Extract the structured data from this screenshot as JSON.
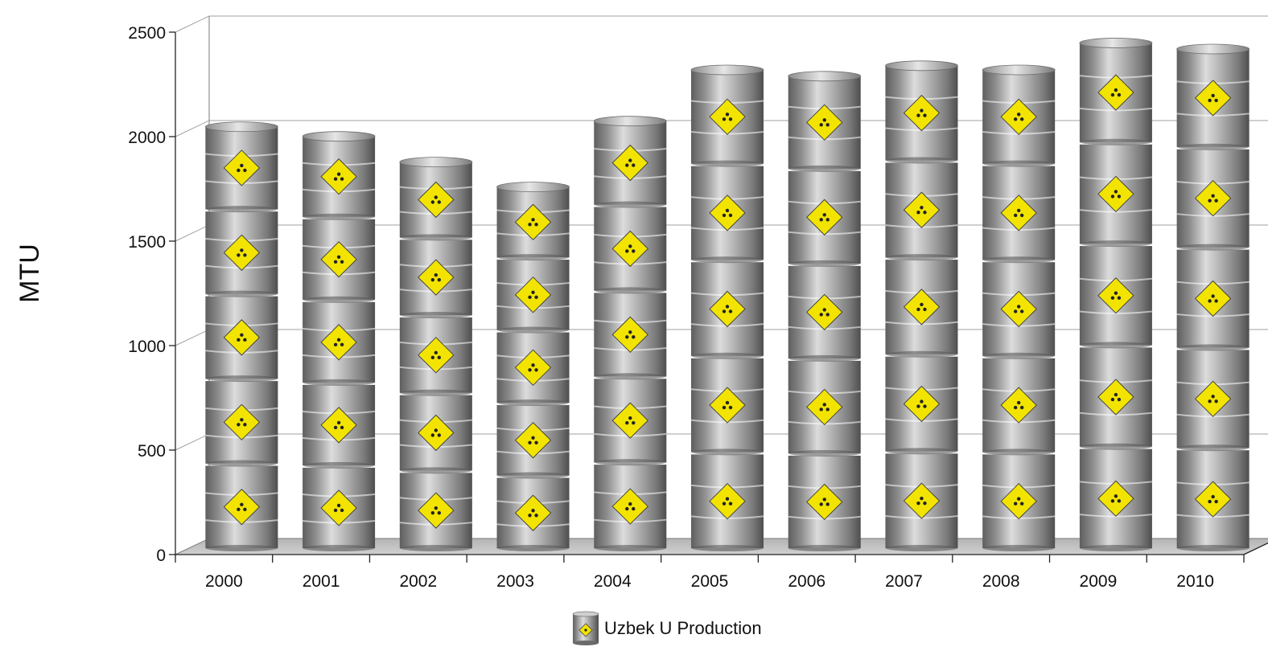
{
  "chart_data": {
    "type": "bar",
    "title": "",
    "xlabel": "",
    "ylabel": "MTU",
    "categories": [
      "2000",
      "2001",
      "2002",
      "2003",
      "2004",
      "2005",
      "2006",
      "2007",
      "2008",
      "2009",
      "2010"
    ],
    "series": [
      {
        "name": "Uzbek U Production",
        "values": [
          2028,
          1982,
          1859,
          1740,
          2055,
          2300,
          2270,
          2320,
          2300,
          2429,
          2400
        ]
      }
    ],
    "ylim": [
      0,
      2500
    ],
    "yticks": [
      0,
      500,
      1000,
      1500,
      2000,
      2500
    ],
    "grid": true,
    "style": "3d-barrel-stack",
    "legend_position": "bottom",
    "colors": {
      "barrel": "#9a9a9a",
      "label": "#f2e400",
      "floor": "#c4c4c4",
      "grid": "#a0a0a0"
    }
  }
}
